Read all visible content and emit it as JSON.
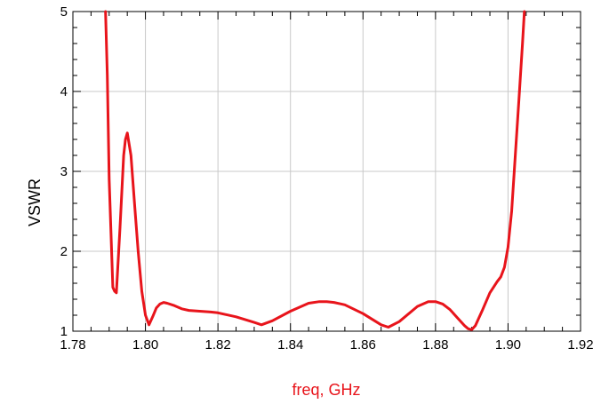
{
  "chart_data": {
    "type": "line",
    "xlabel": "freq, GHz",
    "ylabel": "VSWR",
    "xlim": [
      1.78,
      1.92
    ],
    "ylim": [
      1,
      5
    ],
    "x_ticks": [
      1.78,
      1.8,
      1.82,
      1.84,
      1.86,
      1.88,
      1.9,
      1.92
    ],
    "x_tick_labels": [
      "1.78",
      "1.80",
      "1.82",
      "1.84",
      "1.86",
      "1.88",
      "1.90",
      "1.92"
    ],
    "y_ticks": [
      1,
      2,
      3,
      4,
      5
    ],
    "y_tick_labels": [
      "1",
      "2",
      "3",
      "4",
      "5"
    ],
    "grid": true,
    "colors": {
      "series": "#e8141b",
      "xlabel": "#e8141b",
      "ylabel": "#000000",
      "grid": "#c8c8c8"
    },
    "series": [
      {
        "x": [
          1.789,
          1.7895,
          1.79,
          1.791,
          1.7915,
          1.792,
          1.793,
          1.794,
          1.7945,
          1.795,
          1.796,
          1.797,
          1.798,
          1.799,
          1.8,
          1.801,
          1.802,
          1.803,
          1.804,
          1.805,
          1.806,
          1.808,
          1.81,
          1.812,
          1.815,
          1.818,
          1.82,
          1.825,
          1.83,
          1.832,
          1.835,
          1.84,
          1.845,
          1.848,
          1.85,
          1.852,
          1.855,
          1.86,
          1.865,
          1.867,
          1.87,
          1.875,
          1.878,
          1.88,
          1.882,
          1.884,
          1.886,
          1.888,
          1.889,
          1.89,
          1.891,
          1.893,
          1.895,
          1.897,
          1.898,
          1.899,
          1.9,
          1.901,
          1.902,
          1.903,
          1.904,
          1.9045
        ],
        "y": [
          5.0,
          4.2,
          2.9,
          1.55,
          1.5,
          1.48,
          2.3,
          3.2,
          3.4,
          3.48,
          3.2,
          2.6,
          2.0,
          1.5,
          1.2,
          1.08,
          1.18,
          1.29,
          1.34,
          1.36,
          1.35,
          1.32,
          1.28,
          1.26,
          1.25,
          1.24,
          1.23,
          1.18,
          1.11,
          1.08,
          1.13,
          1.25,
          1.35,
          1.37,
          1.37,
          1.36,
          1.33,
          1.22,
          1.08,
          1.05,
          1.12,
          1.31,
          1.37,
          1.37,
          1.34,
          1.27,
          1.17,
          1.07,
          1.03,
          1.02,
          1.07,
          1.27,
          1.48,
          1.62,
          1.68,
          1.8,
          2.05,
          2.5,
          3.2,
          3.9,
          4.6,
          5.0
        ]
      }
    ]
  }
}
